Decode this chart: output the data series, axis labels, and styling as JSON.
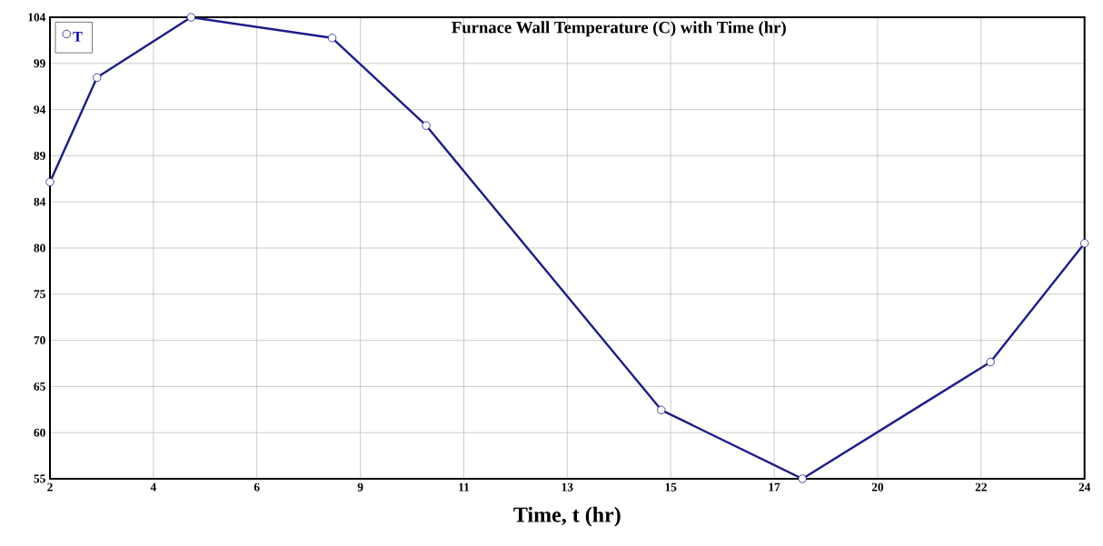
{
  "chart_data": {
    "type": "line",
    "title": "Furnace Wall Temperature (C) with Time (hr)",
    "xlabel": "Time, t (hr)",
    "x": [
      2,
      3,
      5,
      8,
      10,
      15,
      18,
      22,
      24
    ],
    "series": [
      {
        "name": "T",
        "color": "#1c1c8c",
        "values": [
          86.5,
          97.6,
          104,
          101.8,
          92.5,
          62.3,
          55,
          67.4,
          80
        ]
      }
    ],
    "xlim": [
      2,
      24
    ],
    "xticks": [
      2,
      {
        "value": 4.2,
        "label": "4"
      },
      {
        "value": 6.4,
        "label": "6"
      },
      {
        "value": 8.6,
        "label": "9"
      },
      {
        "value": 10.8,
        "label": "11"
      },
      13,
      {
        "value": 15.2,
        "label": "15"
      },
      {
        "value": 17.4,
        "label": "17"
      },
      {
        "value": 19.6,
        "label": "20"
      },
      {
        "value": 21.8,
        "label": "22"
      },
      24
    ],
    "ylim": [
      55,
      104
    ],
    "yticks": [
      55,
      {
        "value": 59.9,
        "label": "60"
      },
      {
        "value": 64.8,
        "label": "65"
      },
      {
        "value": 69.7,
        "label": "70"
      },
      {
        "value": 74.6,
        "label": "75"
      },
      {
        "value": 79.5,
        "label": "80"
      },
      {
        "value": 84.4,
        "label": "84"
      },
      {
        "value": 89.3,
        "label": "89"
      },
      {
        "value": 94.2,
        "label": "94"
      },
      {
        "value": 99.1,
        "label": "99"
      },
      104
    ],
    "grid": true,
    "legend": "top left",
    "marker": "circle",
    "line_style": "solid"
  }
}
